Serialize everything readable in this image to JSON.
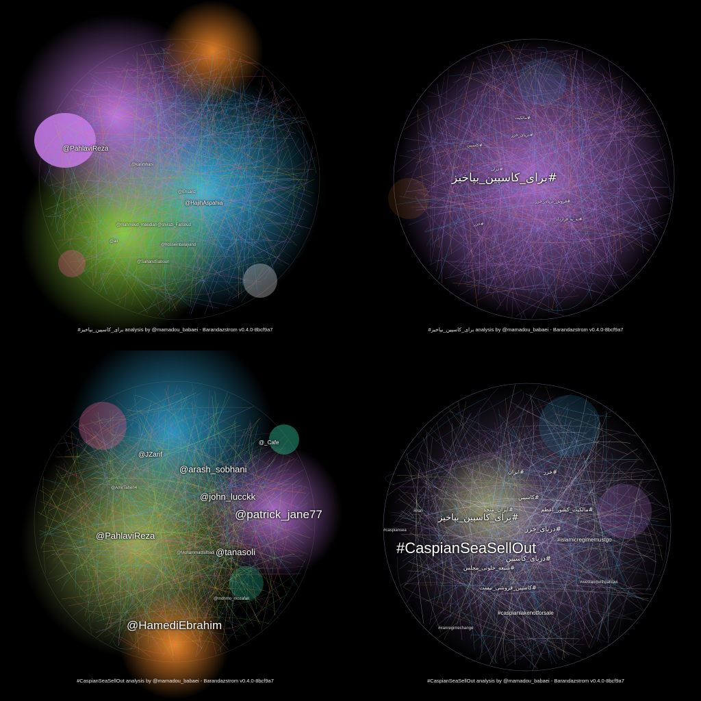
{
  "panels": [
    {
      "caption": "#برای_کاسپین_بپاخیز analysis by @mamadou_babaei - Barandazstrom v0.4.0-8bcf9a7",
      "labels": {
        "pahlavi": "@PahlaviReza",
        "hajihanjaneia": "@HajihAspahia",
        "a": "@Ehsanz",
        "b": "@mahmoud_maedian",
        "c": "@shirazi_Farsoud",
        "d": "@hosseinbalayand",
        "e": "@SahandSabouri",
        "f": "@ali",
        "g": "@karimhani"
      }
    },
    {
      "caption": "#برای_کاسپین_بپاخیز analysis by @mamadou_babaei - Barandazstrom v0.4.0-8bcf9a7",
      "labels": {
        "main": "#برای_کاسپین_بپاخیز",
        "a": "#دریای_خزر",
        "b": "#کاسپین",
        "c": "#ایران",
        "d": "#فروش_دریای_خزر",
        "e": "#مالکیت",
        "f": "#خزر",
        "g": "#نه_به_قرارداد"
      }
    },
    {
      "caption": "#CaspianSeaSellOut analysis by @mamadou_babaei - Barandazstrom v0.4.0-8bcf9a7",
      "labels": {
        "cafe": "@_Cafe",
        "jzarif": "@JZarif",
        "arash": "@arash_sobhani",
        "john": "@john_lucckk",
        "patrick": "@patrick_jane77",
        "amir": "@AmirTaheri4",
        "pahlavi": "@PahlaviReza",
        "tanasoli": "@tanasoli",
        "mohammad": "@Mohammadfalbadi",
        "mozafari": "@mohmo_mozafari",
        "hamedi": "@HamediEbrahim"
      }
    },
    {
      "caption": "#CaspianSeaSellOut analysis by @mamadou_babaei - Barandazstrom v0.4.0-8bcf9a7",
      "labels": {
        "main": "#CaspianSeaSellOut",
        "bepakhiz": "#برای_کاسپین_بپاخیز",
        "iran_fa": "#ایران",
        "khazar": "#خزر",
        "caspian_fa": "#کاسپین",
        "maleki": "#مالکیت_کشور_اعظم",
        "iran_mot": "#ایران_متحد",
        "daryaye_khazar": "#دریای_خزر",
        "islamic": "#islamicregimemustgo",
        "daryaye_caspian": "#دریای_کاسپین",
        "shabe": "#شیعه_خلوتی_مجلس",
        "caspian_froosh": "#کاسپین_فروشی_نیست",
        "caspianlake": "#caspianlakenotforsale",
        "caspiansea": "#caspiansea",
        "iran_en": "#iran",
        "iranregime": "#iranregimechange",
        "westand": "#westandwithpahlavi"
      }
    }
  ],
  "colors": {
    "background": "#000000",
    "purple": "#c77dea",
    "cyan": "#35b9f0",
    "green": "#8fd33a",
    "orange": "#f28a2b",
    "pink": "#e65a8a",
    "teal": "#2fbf9a",
    "white": "#ffffff"
  }
}
